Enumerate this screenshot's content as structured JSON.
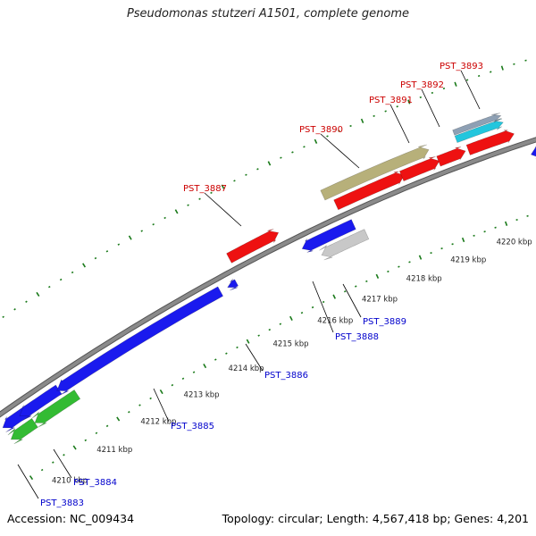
{
  "title": "Pseudomonas stutzeri A1501, complete genome",
  "footer": {
    "accession": "Accession: NC_009434",
    "summary": "Topology: circular; Length: 4,567,418 bp; Genes: 4,201"
  },
  "colors": {
    "backbone": "#8a8a8a",
    "tick_major": "#1a7a1a",
    "tick_minor": "#1a7a1a",
    "label_forward": "#cc0000",
    "label_reverse": "#0000cc",
    "red": "#ee1111",
    "blue": "#1a1aee",
    "olive": "#b7b07a",
    "green": "#33bb33",
    "gray": "#c8c8c8",
    "dark_gray": "#777777",
    "cyan": "#22c6dd",
    "steel": "#8ea0b4"
  },
  "scale_labels": [
    "4210 kbp",
    "4211 kbp",
    "4212 kbp",
    "4213 kbp",
    "4214 kbp",
    "4215 kbp",
    "4216 kbp",
    "4217 kbp",
    "4218 kbp",
    "4219 kbp",
    "4220 kbp"
  ],
  "gene_labels": {
    "forward": [
      "PST_3887",
      "PST_3890",
      "PST_3891",
      "PST_3892",
      "PST_3893"
    ],
    "reverse": [
      "PST_3883",
      "PST_3884",
      "PST_3885",
      "PST_3886",
      "PST_3888",
      "PST_3889"
    ]
  }
}
